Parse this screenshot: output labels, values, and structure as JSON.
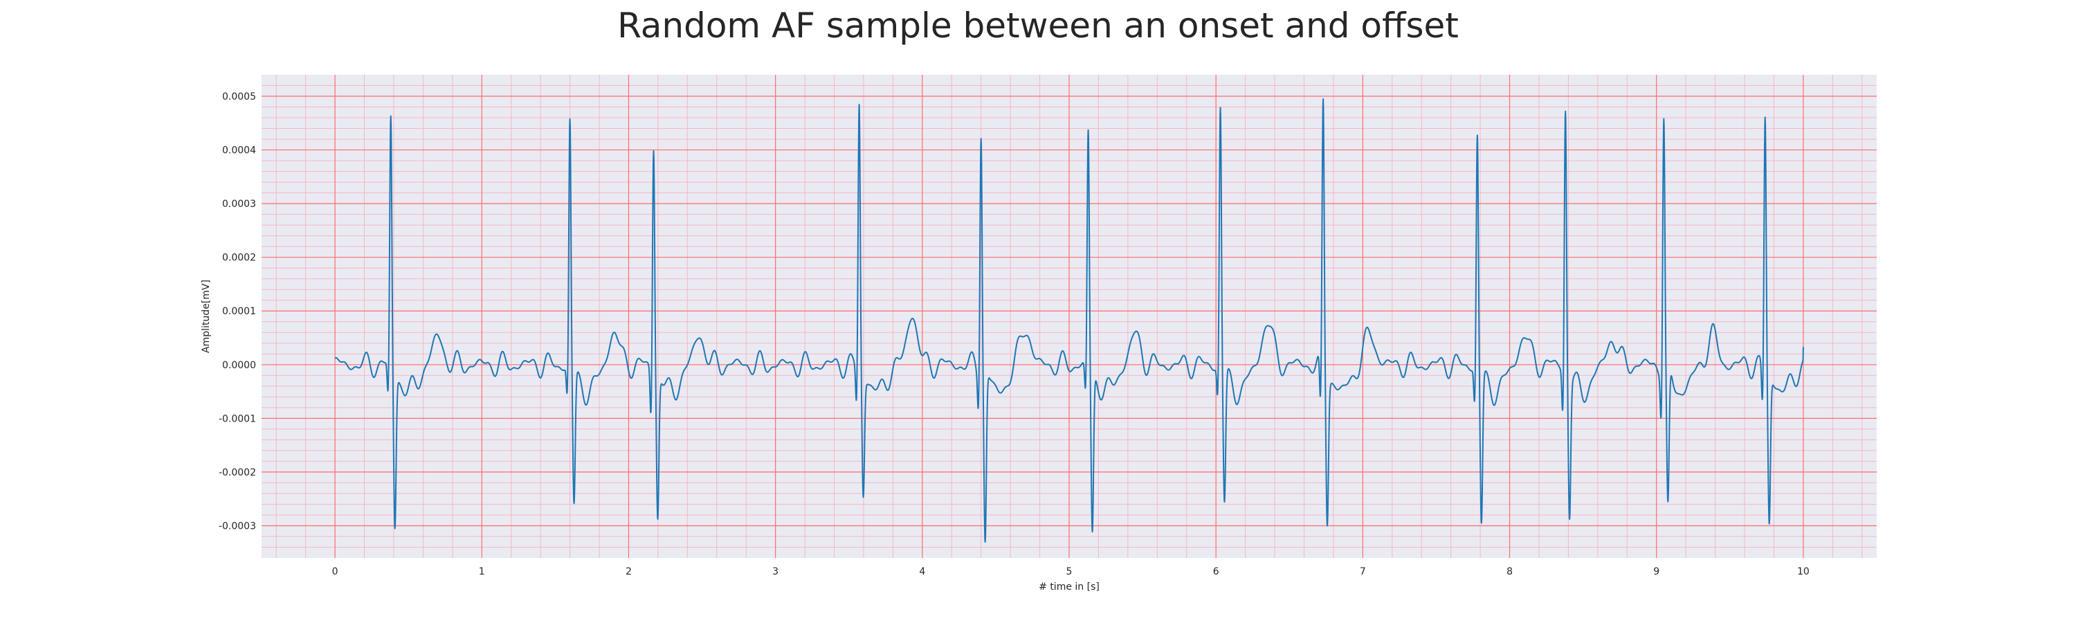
{
  "chart_data": {
    "type": "line",
    "title": "Random AF sample between an onset and offset",
    "xlabel": "# time in [s]",
    "ylabel": "Amplitude[mV]",
    "xlim": [
      -0.5,
      10.5
    ],
    "ylim": [
      -0.00036,
      0.00054
    ],
    "x_ticks": [
      0,
      1,
      2,
      3,
      4,
      5,
      6,
      7,
      8,
      9,
      10
    ],
    "x_tick_labels": [
      "0",
      "1",
      "2",
      "3",
      "4",
      "5",
      "6",
      "7",
      "8",
      "9",
      "10"
    ],
    "y_ticks": [
      -0.0003,
      -0.0002,
      -0.0001,
      0.0,
      0.0001,
      0.0002,
      0.0003,
      0.0004,
      0.0005
    ],
    "y_tick_labels": [
      "-0.0003",
      "-0.0002",
      "-0.0001",
      "0.0000",
      "0.0001",
      "0.0002",
      "0.0003",
      "0.0004",
      "0.0005"
    ],
    "grid": true,
    "minor_grid": true,
    "colors": {
      "line": "#1f77b4",
      "plot_background": "#eaeaf2",
      "major_grid": "#ff6b6b",
      "minor_grid": "#f2b8c6"
    },
    "beats": [
      {
        "t": 0.38,
        "r": 0.000465,
        "s": -0.000285,
        "q": -6.5e-05
      },
      {
        "t": 1.6,
        "r": 0.000462,
        "s": -0.000248,
        "q": -6e-05
      },
      {
        "t": 2.17,
        "r": 0.000415,
        "s": -0.000268,
        "q": -9.5e-05
      },
      {
        "t": 3.57,
        "r": 0.000495,
        "s": -0.000225,
        "q": -7.5e-05
      },
      {
        "t": 4.4,
        "r": 0.000447,
        "s": -0.000318,
        "q": -7e-05
      },
      {
        "t": 5.13,
        "r": 0.00044,
        "s": -0.000302,
        "q": -6e-05
      },
      {
        "t": 6.03,
        "r": 0.00049,
        "s": -0.000242,
        "q": -6e-05
      },
      {
        "t": 6.73,
        "r": 0.000495,
        "s": -0.000268,
        "q": -9.5e-05
      },
      {
        "t": 7.78,
        "r": 0.000435,
        "s": -0.000282,
        "q": -7.2e-05
      },
      {
        "t": 8.38,
        "r": 0.000485,
        "s": -0.000262,
        "q": -8.8e-05
      },
      {
        "t": 9.05,
        "r": 0.00047,
        "s": -0.000265,
        "q": -8.8e-05
      },
      {
        "t": 9.74,
        "r": 0.000468,
        "s": -0.00028,
        "q": -8.2e-05
      }
    ],
    "t_waves": [
      {
        "t": 0.7,
        "a": 5.2e-05
      },
      {
        "t": 1.9,
        "a": 6.2e-05
      },
      {
        "t": 2.48,
        "a": 5.5e-05
      },
      {
        "t": 3.93,
        "a": 9.5e-05
      },
      {
        "t": 4.7,
        "a": 7.2e-05
      },
      {
        "t": 5.45,
        "a": 5.5e-05
      },
      {
        "t": 6.35,
        "a": 8.2e-05
      },
      {
        "t": 7.05,
        "a": 6e-05
      },
      {
        "t": 8.1,
        "a": 5.5e-05
      },
      {
        "t": 8.7,
        "a": 5e-05
      },
      {
        "t": 9.38,
        "a": 5.5e-05
      }
    ],
    "end_value": 3.3e-05,
    "start_value": 1.2e-05
  }
}
